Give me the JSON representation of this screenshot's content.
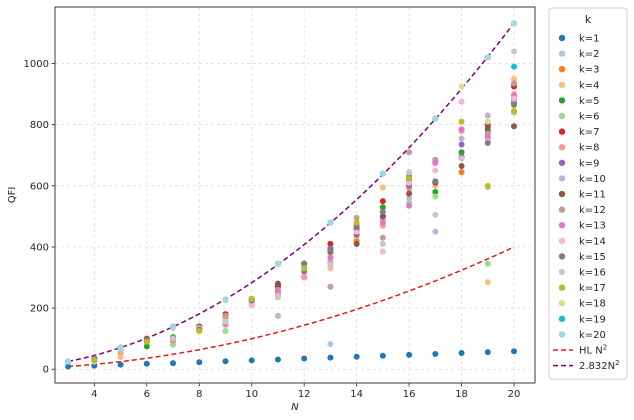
{
  "chart_data": {
    "type": "scatter",
    "title": "",
    "xlabel": "N",
    "ylabel": "QFI",
    "xlim": [
      2.5,
      20.8
    ],
    "ylim": [
      -45,
      1185
    ],
    "xticks": [
      "4",
      "6",
      "8",
      "10",
      "12",
      "14",
      "16",
      "18",
      "20"
    ],
    "yticks": [
      "0",
      "200",
      "400",
      "600",
      "800",
      "1000"
    ],
    "grid": true,
    "legend": {
      "title": "k",
      "placement": "right-outside"
    },
    "series": [
      {
        "name": "k=1",
        "color": "#1f77b4",
        "points": [
          [
            3,
            9
          ],
          [
            4,
            12
          ],
          [
            5,
            15
          ],
          [
            6,
            18
          ],
          [
            7,
            20
          ],
          [
            8,
            23
          ],
          [
            9,
            26
          ],
          [
            10,
            29
          ],
          [
            11,
            32
          ],
          [
            12,
            35
          ],
          [
            13,
            38
          ],
          [
            14,
            41
          ],
          [
            15,
            44
          ],
          [
            16,
            47
          ],
          [
            17,
            50
          ],
          [
            18,
            53
          ],
          [
            19,
            56
          ],
          [
            20,
            59
          ]
        ]
      },
      {
        "name": "k=2",
        "color": "#aec7e8",
        "points": [
          [
            3,
            25
          ],
          [
            5,
            72
          ],
          [
            7,
            140
          ],
          [
            9,
            228
          ],
          [
            11,
            345
          ],
          [
            13,
            480
          ],
          [
            13,
            82
          ],
          [
            15,
            640
          ],
          [
            17,
            820
          ],
          [
            19,
            1020
          ],
          [
            20,
            1132
          ]
        ]
      },
      {
        "name": "k=3",
        "color": "#ff7f0e",
        "points": [
          [
            3,
            25
          ],
          [
            4,
            30
          ],
          [
            5,
            55
          ],
          [
            6,
            90
          ],
          [
            7,
            100
          ],
          [
            8,
            125
          ],
          [
            9,
            170
          ],
          [
            10,
            210
          ],
          [
            11,
            245
          ],
          [
            12,
            300
          ],
          [
            13,
            350
          ],
          [
            14,
            420
          ],
          [
            15,
            500
          ],
          [
            16,
            600
          ],
          [
            17,
            610
          ],
          [
            18,
            645
          ],
          [
            19,
            770
          ],
          [
            20,
            930
          ]
        ]
      },
      {
        "name": "k=4",
        "color": "#ffbb78",
        "points": [
          [
            3,
            25
          ],
          [
            4,
            35
          ],
          [
            5,
            40
          ],
          [
            7,
            90
          ],
          [
            8,
            140
          ],
          [
            9,
            160
          ],
          [
            10,
            215
          ],
          [
            11,
            235
          ],
          [
            12,
            305
          ],
          [
            13,
            330
          ],
          [
            14,
            435
          ],
          [
            15,
            595
          ],
          [
            16,
            620
          ],
          [
            17,
            600
          ],
          [
            18,
            780
          ],
          [
            19,
            285
          ],
          [
            20,
            950
          ]
        ]
      },
      {
        "name": "k=5",
        "color": "#2ca02c",
        "points": [
          [
            3,
            25
          ],
          [
            4,
            35
          ],
          [
            5,
            70
          ],
          [
            6,
            75
          ],
          [
            7,
            105
          ],
          [
            8,
            135
          ],
          [
            9,
            180
          ],
          [
            10,
            225
          ],
          [
            11,
            275
          ],
          [
            12,
            345
          ],
          [
            13,
            395
          ],
          [
            14,
            460
          ],
          [
            15,
            530
          ],
          [
            16,
            620
          ],
          [
            17,
            580
          ],
          [
            18,
            710
          ],
          [
            19,
            780
          ],
          [
            20,
            870
          ]
        ]
      },
      {
        "name": "k=6",
        "color": "#98df8a",
        "points": [
          [
            3,
            25
          ],
          [
            4,
            35
          ],
          [
            5,
            65
          ],
          [
            7,
            80
          ],
          [
            8,
            130
          ],
          [
            9,
            125
          ],
          [
            11,
            255
          ],
          [
            13,
            365
          ],
          [
            14,
            465
          ],
          [
            15,
            500
          ],
          [
            16,
            545
          ],
          [
            17,
            565
          ],
          [
            18,
            690
          ],
          [
            19,
            345
          ],
          [
            20,
            840
          ]
        ]
      },
      {
        "name": "k=7",
        "color": "#d62728",
        "points": [
          [
            3,
            25
          ],
          [
            5,
            70
          ],
          [
            7,
            140
          ],
          [
            8,
            140
          ],
          [
            9,
            180
          ],
          [
            10,
            230
          ],
          [
            11,
            270
          ],
          [
            12,
            345
          ],
          [
            13,
            410
          ],
          [
            14,
            455
          ],
          [
            15,
            550
          ],
          [
            16,
            625
          ],
          [
            17,
            685
          ],
          [
            18,
            780
          ],
          [
            19,
            800
          ],
          [
            20,
            925
          ]
        ]
      },
      {
        "name": "k=8",
        "color": "#ff9896",
        "points": [
          [
            4,
            35
          ],
          [
            7,
            95
          ],
          [
            9,
            145
          ],
          [
            10,
            210
          ],
          [
            11,
            255
          ],
          [
            12,
            300
          ],
          [
            13,
            380
          ],
          [
            14,
            470
          ],
          [
            15,
            470
          ],
          [
            16,
            590
          ],
          [
            17,
            680
          ],
          [
            18,
            780
          ],
          [
            19,
            750
          ],
          [
            20,
            900
          ]
        ]
      },
      {
        "name": "k=9",
        "color": "#9467bd",
        "points": [
          [
            3,
            25
          ],
          [
            5,
            70
          ],
          [
            7,
            140
          ],
          [
            9,
            228
          ],
          [
            11,
            345
          ],
          [
            12,
            320
          ],
          [
            13,
            395
          ],
          [
            14,
            440
          ],
          [
            15,
            640
          ],
          [
            16,
            600
          ],
          [
            17,
            675
          ],
          [
            18,
            735
          ],
          [
            19,
            1020
          ],
          [
            20,
            880
          ]
        ]
      },
      {
        "name": "k=10",
        "color": "#c5b0d5",
        "points": [
          [
            4,
            30
          ],
          [
            6,
            100
          ],
          [
            8,
            135
          ],
          [
            10,
            215
          ],
          [
            11,
            175
          ],
          [
            12,
            345
          ],
          [
            13,
            350
          ],
          [
            14,
            475
          ],
          [
            15,
            490
          ],
          [
            16,
            560
          ],
          [
            17,
            450
          ],
          [
            18,
            755
          ],
          [
            19,
            830
          ],
          [
            20,
            1130
          ]
        ]
      },
      {
        "name": "k=11",
        "color": "#8c564b",
        "points": [
          [
            4,
            35
          ],
          [
            6,
            100
          ],
          [
            8,
            140
          ],
          [
            10,
            230
          ],
          [
            11,
            280
          ],
          [
            12,
            345
          ],
          [
            13,
            385
          ],
          [
            14,
            410
          ],
          [
            15,
            500
          ],
          [
            16,
            575
          ],
          [
            17,
            610
          ],
          [
            18,
            665
          ],
          [
            19,
            790
          ],
          [
            20,
            795
          ]
        ]
      },
      {
        "name": "k=12",
        "color": "#c49c94",
        "points": [
          [
            5,
            60
          ],
          [
            7,
            100
          ],
          [
            9,
            175
          ],
          [
            11,
            260
          ],
          [
            13,
            270
          ],
          [
            14,
            495
          ],
          [
            15,
            430
          ],
          [
            16,
            710
          ],
          [
            17,
            685
          ],
          [
            18,
            690
          ],
          [
            19,
            770
          ],
          [
            20,
            935
          ]
        ]
      },
      {
        "name": "k=13",
        "color": "#e377c2",
        "points": [
          [
            5,
            65
          ],
          [
            7,
            95
          ],
          [
            9,
            150
          ],
          [
            11,
            255
          ],
          [
            13,
            365
          ],
          [
            14,
            470
          ],
          [
            15,
            480
          ],
          [
            16,
            535
          ],
          [
            17,
            675
          ],
          [
            18,
            785
          ],
          [
            19,
            760
          ],
          [
            20,
            895
          ]
        ]
      },
      {
        "name": "k=14",
        "color": "#f7b6d2",
        "points": [
          [
            4,
            25
          ],
          [
            6,
            95
          ],
          [
            8,
            135
          ],
          [
            10,
            210
          ],
          [
            12,
            335
          ],
          [
            14,
            450
          ],
          [
            15,
            385
          ],
          [
            16,
            610
          ],
          [
            17,
            650
          ],
          [
            18,
            875
          ],
          [
            19,
            745
          ],
          [
            20,
            885
          ]
        ]
      },
      {
        "name": "k=15",
        "color": "#7f7f7f",
        "points": [
          [
            4,
            35
          ],
          [
            6,
            95
          ],
          [
            8,
            130
          ],
          [
            10,
            225
          ],
          [
            12,
            345
          ],
          [
            13,
            390
          ],
          [
            14,
            465
          ],
          [
            15,
            515
          ],
          [
            16,
            630
          ],
          [
            17,
            615
          ],
          [
            18,
            695
          ],
          [
            19,
            740
          ],
          [
            20,
            865
          ]
        ]
      },
      {
        "name": "k=16",
        "color": "#c7c7c7",
        "points": [
          [
            5,
            60
          ],
          [
            7,
            100
          ],
          [
            9,
            155
          ],
          [
            11,
            240
          ],
          [
            13,
            340
          ],
          [
            15,
            410
          ],
          [
            16,
            645
          ],
          [
            17,
            505
          ],
          [
            18,
            690
          ],
          [
            19,
            595
          ],
          [
            20,
            1040
          ]
        ]
      },
      {
        "name": "k=17",
        "color": "#bcbd22",
        "points": [
          [
            4,
            30
          ],
          [
            6,
            90
          ],
          [
            8,
            125
          ],
          [
            10,
            230
          ],
          [
            12,
            330
          ],
          [
            14,
            480
          ],
          [
            16,
            625
          ],
          [
            17,
            820
          ],
          [
            18,
            810
          ],
          [
            19,
            600
          ],
          [
            20,
            845
          ]
        ]
      },
      {
        "name": "k=18",
        "color": "#dbdb8d",
        "points": [
          [
            3,
            25
          ],
          [
            5,
            70
          ],
          [
            7,
            135
          ],
          [
            9,
            225
          ],
          [
            11,
            345
          ],
          [
            13,
            480
          ],
          [
            15,
            640
          ],
          [
            17,
            820
          ],
          [
            18,
            925
          ],
          [
            19,
            810
          ],
          [
            20,
            1130
          ]
        ]
      },
      {
        "name": "k=19",
        "color": "#17becf",
        "points": [
          [
            3,
            25
          ],
          [
            5,
            70
          ],
          [
            7,
            140
          ],
          [
            9,
            228
          ],
          [
            11,
            345
          ],
          [
            13,
            480
          ],
          [
            15,
            640
          ],
          [
            17,
            820
          ],
          [
            19,
            1020
          ],
          [
            20,
            990
          ]
        ]
      },
      {
        "name": "k=20",
        "color": "#9edae5",
        "points": [
          [
            3,
            25
          ],
          [
            5,
            70
          ],
          [
            7,
            140
          ],
          [
            9,
            228
          ],
          [
            11,
            345
          ],
          [
            13,
            480
          ],
          [
            15,
            640
          ],
          [
            17,
            820
          ],
          [
            19,
            1020
          ],
          [
            20,
            1132
          ]
        ]
      }
    ],
    "curves": [
      {
        "name": "HL N²",
        "label_main": "HL N",
        "label_sup": "2",
        "coef": 1,
        "color": "#e41a1c",
        "dash": "dashed"
      },
      {
        "name": "2.832N²",
        "label_main": "2.832N",
        "label_sup": "2",
        "coef": 2.832,
        "color": "#800080",
        "dash": "dashed"
      }
    ]
  }
}
